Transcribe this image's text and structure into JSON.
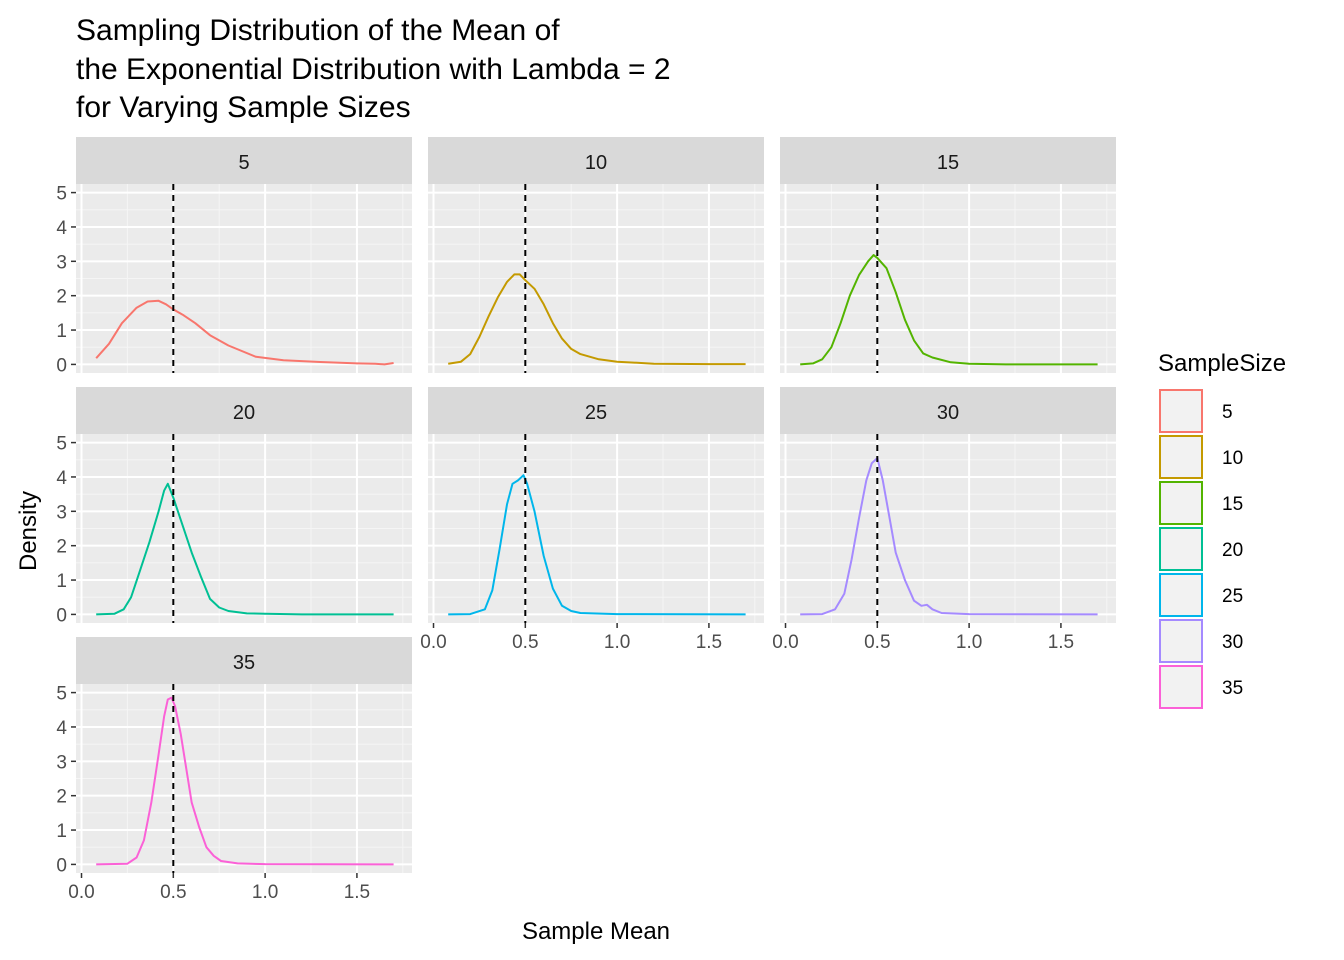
{
  "chart_data": {
    "type": "line",
    "title_lines": [
      "Sampling Distribution of the Mean of",
      "the Exponential Distribution with Lambda = 2",
      "for Varying Sample Sizes"
    ],
    "xlabel": "Sample Mean",
    "ylabel": "Density",
    "xlim": [
      -0.03,
      1.8
    ],
    "ylim": [
      -0.25,
      5.25
    ],
    "x_ticks": [
      0,
      0.5,
      1,
      1.5
    ],
    "x_tick_labels": [
      "0.0",
      "0.5",
      "1.0",
      "1.5"
    ],
    "y_ticks": [
      0,
      1,
      2,
      3,
      4,
      5
    ],
    "y_tick_labels": [
      "0",
      "1",
      "2",
      "3",
      "4",
      "5"
    ],
    "reference_line": {
      "x": 0.5,
      "style": "dashed",
      "color": "#000000"
    },
    "grid": true,
    "legend": {
      "title": "SampleSize",
      "position": "right",
      "entries": [
        "5",
        "10",
        "15",
        "20",
        "25",
        "30",
        "35"
      ]
    },
    "series": [
      {
        "name": "5",
        "color": "#F8766D",
        "x": [
          0.08,
          0.15,
          0.22,
          0.3,
          0.36,
          0.42,
          0.46,
          0.5,
          0.55,
          0.62,
          0.7,
          0.8,
          0.95,
          1.1,
          1.3,
          1.5,
          1.6,
          1.65,
          1.7
        ],
        "y": [
          0.18,
          0.6,
          1.2,
          1.65,
          1.83,
          1.85,
          1.75,
          1.6,
          1.45,
          1.2,
          0.85,
          0.55,
          0.22,
          0.12,
          0.07,
          0.03,
          0.02,
          0.0,
          0.04
        ]
      },
      {
        "name": "10",
        "color": "#C49A00",
        "x": [
          0.08,
          0.15,
          0.2,
          0.25,
          0.3,
          0.35,
          0.4,
          0.44,
          0.47,
          0.5,
          0.55,
          0.6,
          0.65,
          0.7,
          0.75,
          0.8,
          0.9,
          1.0,
          1.2,
          1.5,
          1.7
        ],
        "y": [
          0.02,
          0.08,
          0.3,
          0.8,
          1.4,
          1.95,
          2.4,
          2.62,
          2.62,
          2.45,
          2.2,
          1.75,
          1.2,
          0.75,
          0.45,
          0.3,
          0.15,
          0.08,
          0.02,
          0.01,
          0.01
        ]
      },
      {
        "name": "15",
        "color": "#53B400",
        "x": [
          0.08,
          0.15,
          0.2,
          0.25,
          0.3,
          0.35,
          0.4,
          0.45,
          0.48,
          0.5,
          0.55,
          0.6,
          0.65,
          0.7,
          0.75,
          0.8,
          0.9,
          1.0,
          1.2,
          1.7
        ],
        "y": [
          0.0,
          0.03,
          0.15,
          0.5,
          1.2,
          2.0,
          2.6,
          3.0,
          3.18,
          3.1,
          2.8,
          2.1,
          1.3,
          0.7,
          0.32,
          0.2,
          0.06,
          0.02,
          0.0,
          0.0
        ]
      },
      {
        "name": "20",
        "color": "#00C094",
        "x": [
          0.08,
          0.18,
          0.23,
          0.27,
          0.32,
          0.37,
          0.42,
          0.45,
          0.47,
          0.5,
          0.55,
          0.6,
          0.65,
          0.7,
          0.75,
          0.8,
          0.9,
          1.0,
          1.2,
          1.7
        ],
        "y": [
          0.0,
          0.02,
          0.15,
          0.5,
          1.3,
          2.1,
          3.0,
          3.6,
          3.8,
          3.4,
          2.6,
          1.8,
          1.1,
          0.45,
          0.2,
          0.1,
          0.03,
          0.02,
          0.0,
          0.0
        ]
      },
      {
        "name": "25",
        "color": "#00B6EB",
        "x": [
          0.08,
          0.2,
          0.28,
          0.32,
          0.36,
          0.4,
          0.43,
          0.46,
          0.49,
          0.51,
          0.55,
          0.6,
          0.65,
          0.7,
          0.75,
          0.8,
          1.0,
          1.7
        ],
        "y": [
          0.0,
          0.01,
          0.15,
          0.7,
          1.9,
          3.2,
          3.8,
          3.9,
          4.05,
          3.8,
          3.0,
          1.7,
          0.75,
          0.25,
          0.1,
          0.04,
          0.01,
          0.0
        ]
      },
      {
        "name": "30",
        "color": "#A58AFF",
        "x": [
          0.08,
          0.2,
          0.27,
          0.32,
          0.36,
          0.4,
          0.44,
          0.47,
          0.5,
          0.53,
          0.57,
          0.6,
          0.65,
          0.7,
          0.74,
          0.77,
          0.8,
          0.85,
          1.0,
          1.7
        ],
        "y": [
          0.0,
          0.01,
          0.15,
          0.6,
          1.6,
          2.8,
          3.9,
          4.4,
          4.55,
          3.9,
          2.7,
          1.8,
          1.0,
          0.4,
          0.25,
          0.28,
          0.15,
          0.04,
          0.01,
          0.0
        ]
      },
      {
        "name": "35",
        "color": "#FB61D7",
        "x": [
          0.08,
          0.25,
          0.3,
          0.34,
          0.38,
          0.42,
          0.45,
          0.47,
          0.49,
          0.51,
          0.54,
          0.57,
          0.6,
          0.64,
          0.68,
          0.72,
          0.76,
          0.85,
          1.0,
          1.7
        ],
        "y": [
          0.0,
          0.02,
          0.2,
          0.7,
          1.8,
          3.2,
          4.3,
          4.8,
          4.85,
          4.6,
          3.8,
          2.8,
          1.8,
          1.1,
          0.5,
          0.25,
          0.1,
          0.03,
          0.01,
          0.0
        ]
      }
    ]
  }
}
